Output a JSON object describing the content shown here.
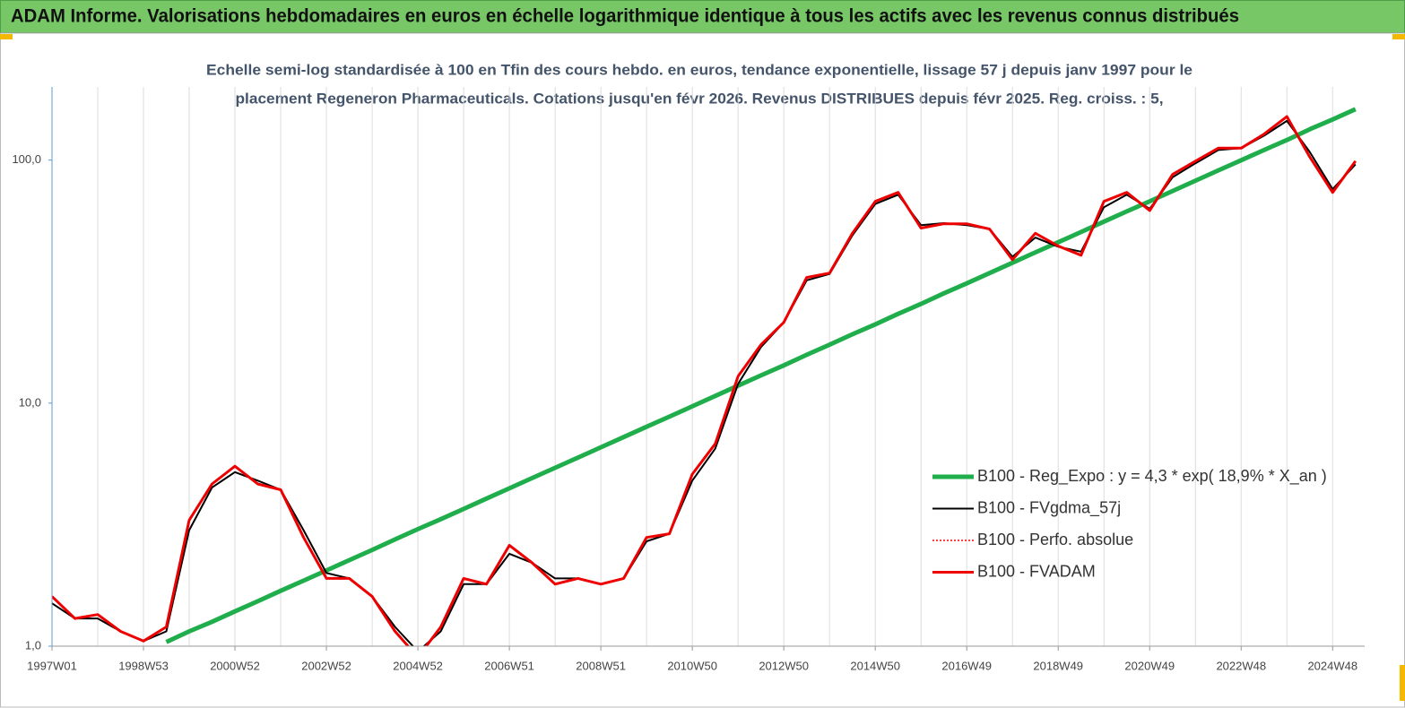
{
  "header": {
    "title": "ADAM Informe. Valorisations hebdomadaires en euros en échelle logarithmique identique à tous les actifs avec les revenus connus distribués"
  },
  "chart_data": {
    "type": "line",
    "subtitle": [
      "Echelle semi-log standardisée à 100 en Tfin des cours hebdo. en euros, tendance exponentielle, lissage 57 j depuis janv 1997 pour le",
      "placement Regeneron Pharmaceuticals. Cotations jusqu'en févr 2026. Revenus DISTRIBUES depuis févr 2025.  Reg. croiss. : 5,"
    ],
    "categories": [
      "1997W01",
      null,
      null,
      null,
      "1998W53",
      null,
      null,
      null,
      "2000W52",
      null,
      null,
      null,
      "2002W52",
      null,
      null,
      null,
      "2004W52",
      null,
      null,
      null,
      "2006W51",
      null,
      null,
      null,
      "2008W51",
      null,
      null,
      null,
      "2010W50",
      null,
      null,
      null,
      "2012W50",
      null,
      null,
      null,
      "2014W50",
      null,
      null,
      null,
      "2016W49",
      null,
      null,
      null,
      "2018W49",
      null,
      null,
      null,
      "2020W49",
      null,
      null,
      null,
      "2022W48",
      null,
      null,
      null,
      "2024W48",
      null
    ],
    "log_scale": true,
    "ylim": [
      1,
      200
    ],
    "yticks": [
      {
        "value": 1,
        "label": "1,0"
      },
      {
        "value": 10,
        "label": "10,0"
      },
      {
        "value": 100,
        "label": "100,0"
      }
    ],
    "grid": true,
    "legend": "right",
    "series": [
      {
        "name": "B100 - Reg_Expo : y = 4,3 * exp( 18,9% *  X_an )",
        "color": "#1fae4b",
        "width": 5,
        "dash": false,
        "values": [
          null,
          null,
          null,
          null,
          null,
          1.04,
          1.15,
          1.26,
          1.39,
          1.53,
          1.69,
          1.86,
          2.05,
          2.26,
          2.49,
          2.75,
          3.03,
          3.33,
          3.67,
          4.05,
          4.46,
          4.92,
          5.42,
          5.97,
          6.58,
          7.25,
          7.99,
          8.8,
          9.7,
          10.7,
          11.8,
          13.0,
          14.3,
          15.8,
          17.4,
          19.2,
          21.1,
          23.3,
          25.6,
          28.3,
          31.1,
          34.3,
          37.8,
          41.7,
          45.9,
          50.6,
          55.8,
          61.5,
          67.7,
          74.6,
          82.3,
          90.7,
          99.9,
          110,
          121,
          134,
          147,
          162
        ]
      },
      {
        "name": "B100 - FVgdma_57j",
        "color": "#000000",
        "width": 2,
        "dash": false,
        "values": [
          1.5,
          1.3,
          1.3,
          1.15,
          1.05,
          1.15,
          3.0,
          4.5,
          5.2,
          4.8,
          4.4,
          3.0,
          2.0,
          1.9,
          1.6,
          1.2,
          0.95,
          1.15,
          1.8,
          1.8,
          2.4,
          2.2,
          1.9,
          1.9,
          1.8,
          1.9,
          2.7,
          2.9,
          4.8,
          6.5,
          12,
          17,
          21.5,
          32,
          34,
          49,
          66,
          72,
          54,
          55,
          54,
          52,
          40,
          48,
          44,
          42,
          64,
          72,
          63,
          85,
          97,
          110,
          112,
          126,
          145,
          108,
          76,
          96
        ]
      },
      {
        "name": "B100 - Perfo. absolue",
        "color": "#ff0000",
        "width": 1.5,
        "dash": true,
        "values": [
          1.6,
          1.3,
          1.35,
          1.15,
          1.05,
          1.2,
          3.3,
          4.65,
          5.5,
          4.65,
          4.4,
          2.8,
          1.9,
          1.9,
          1.6,
          1.15,
          0.9,
          1.2,
          1.9,
          1.8,
          2.6,
          2.2,
          1.8,
          1.9,
          1.8,
          1.9,
          2.8,
          2.9,
          5.1,
          6.8,
          12.9,
          17.4,
          21.5,
          32.9,
          34.3,
          50,
          67.6,
          73.6,
          52.5,
          54.7,
          54.7,
          52,
          38.9,
          50,
          44.3,
          40.6,
          67.6,
          73.6,
          62,
          87.3,
          99,
          112,
          112,
          128,
          151,
          103,
          73.6,
          99
        ]
      },
      {
        "name": "B100 - FVADAM",
        "color": "#ee0000",
        "width": 3,
        "dash": false,
        "values": [
          1.6,
          1.3,
          1.35,
          1.15,
          1.05,
          1.2,
          3.3,
          4.65,
          5.5,
          4.65,
          4.4,
          2.8,
          1.9,
          1.9,
          1.6,
          1.15,
          0.9,
          1.2,
          1.9,
          1.8,
          2.6,
          2.2,
          1.8,
          1.9,
          1.8,
          1.9,
          2.8,
          2.9,
          5.1,
          6.8,
          12.9,
          17.4,
          21.5,
          32.9,
          34.3,
          50,
          67.6,
          73.6,
          52.5,
          54.7,
          54.7,
          52,
          38.9,
          50,
          44.3,
          40.6,
          67.6,
          73.6,
          62,
          87.3,
          99,
          112,
          112,
          128,
          151,
          103,
          73.6,
          99
        ]
      }
    ]
  }
}
